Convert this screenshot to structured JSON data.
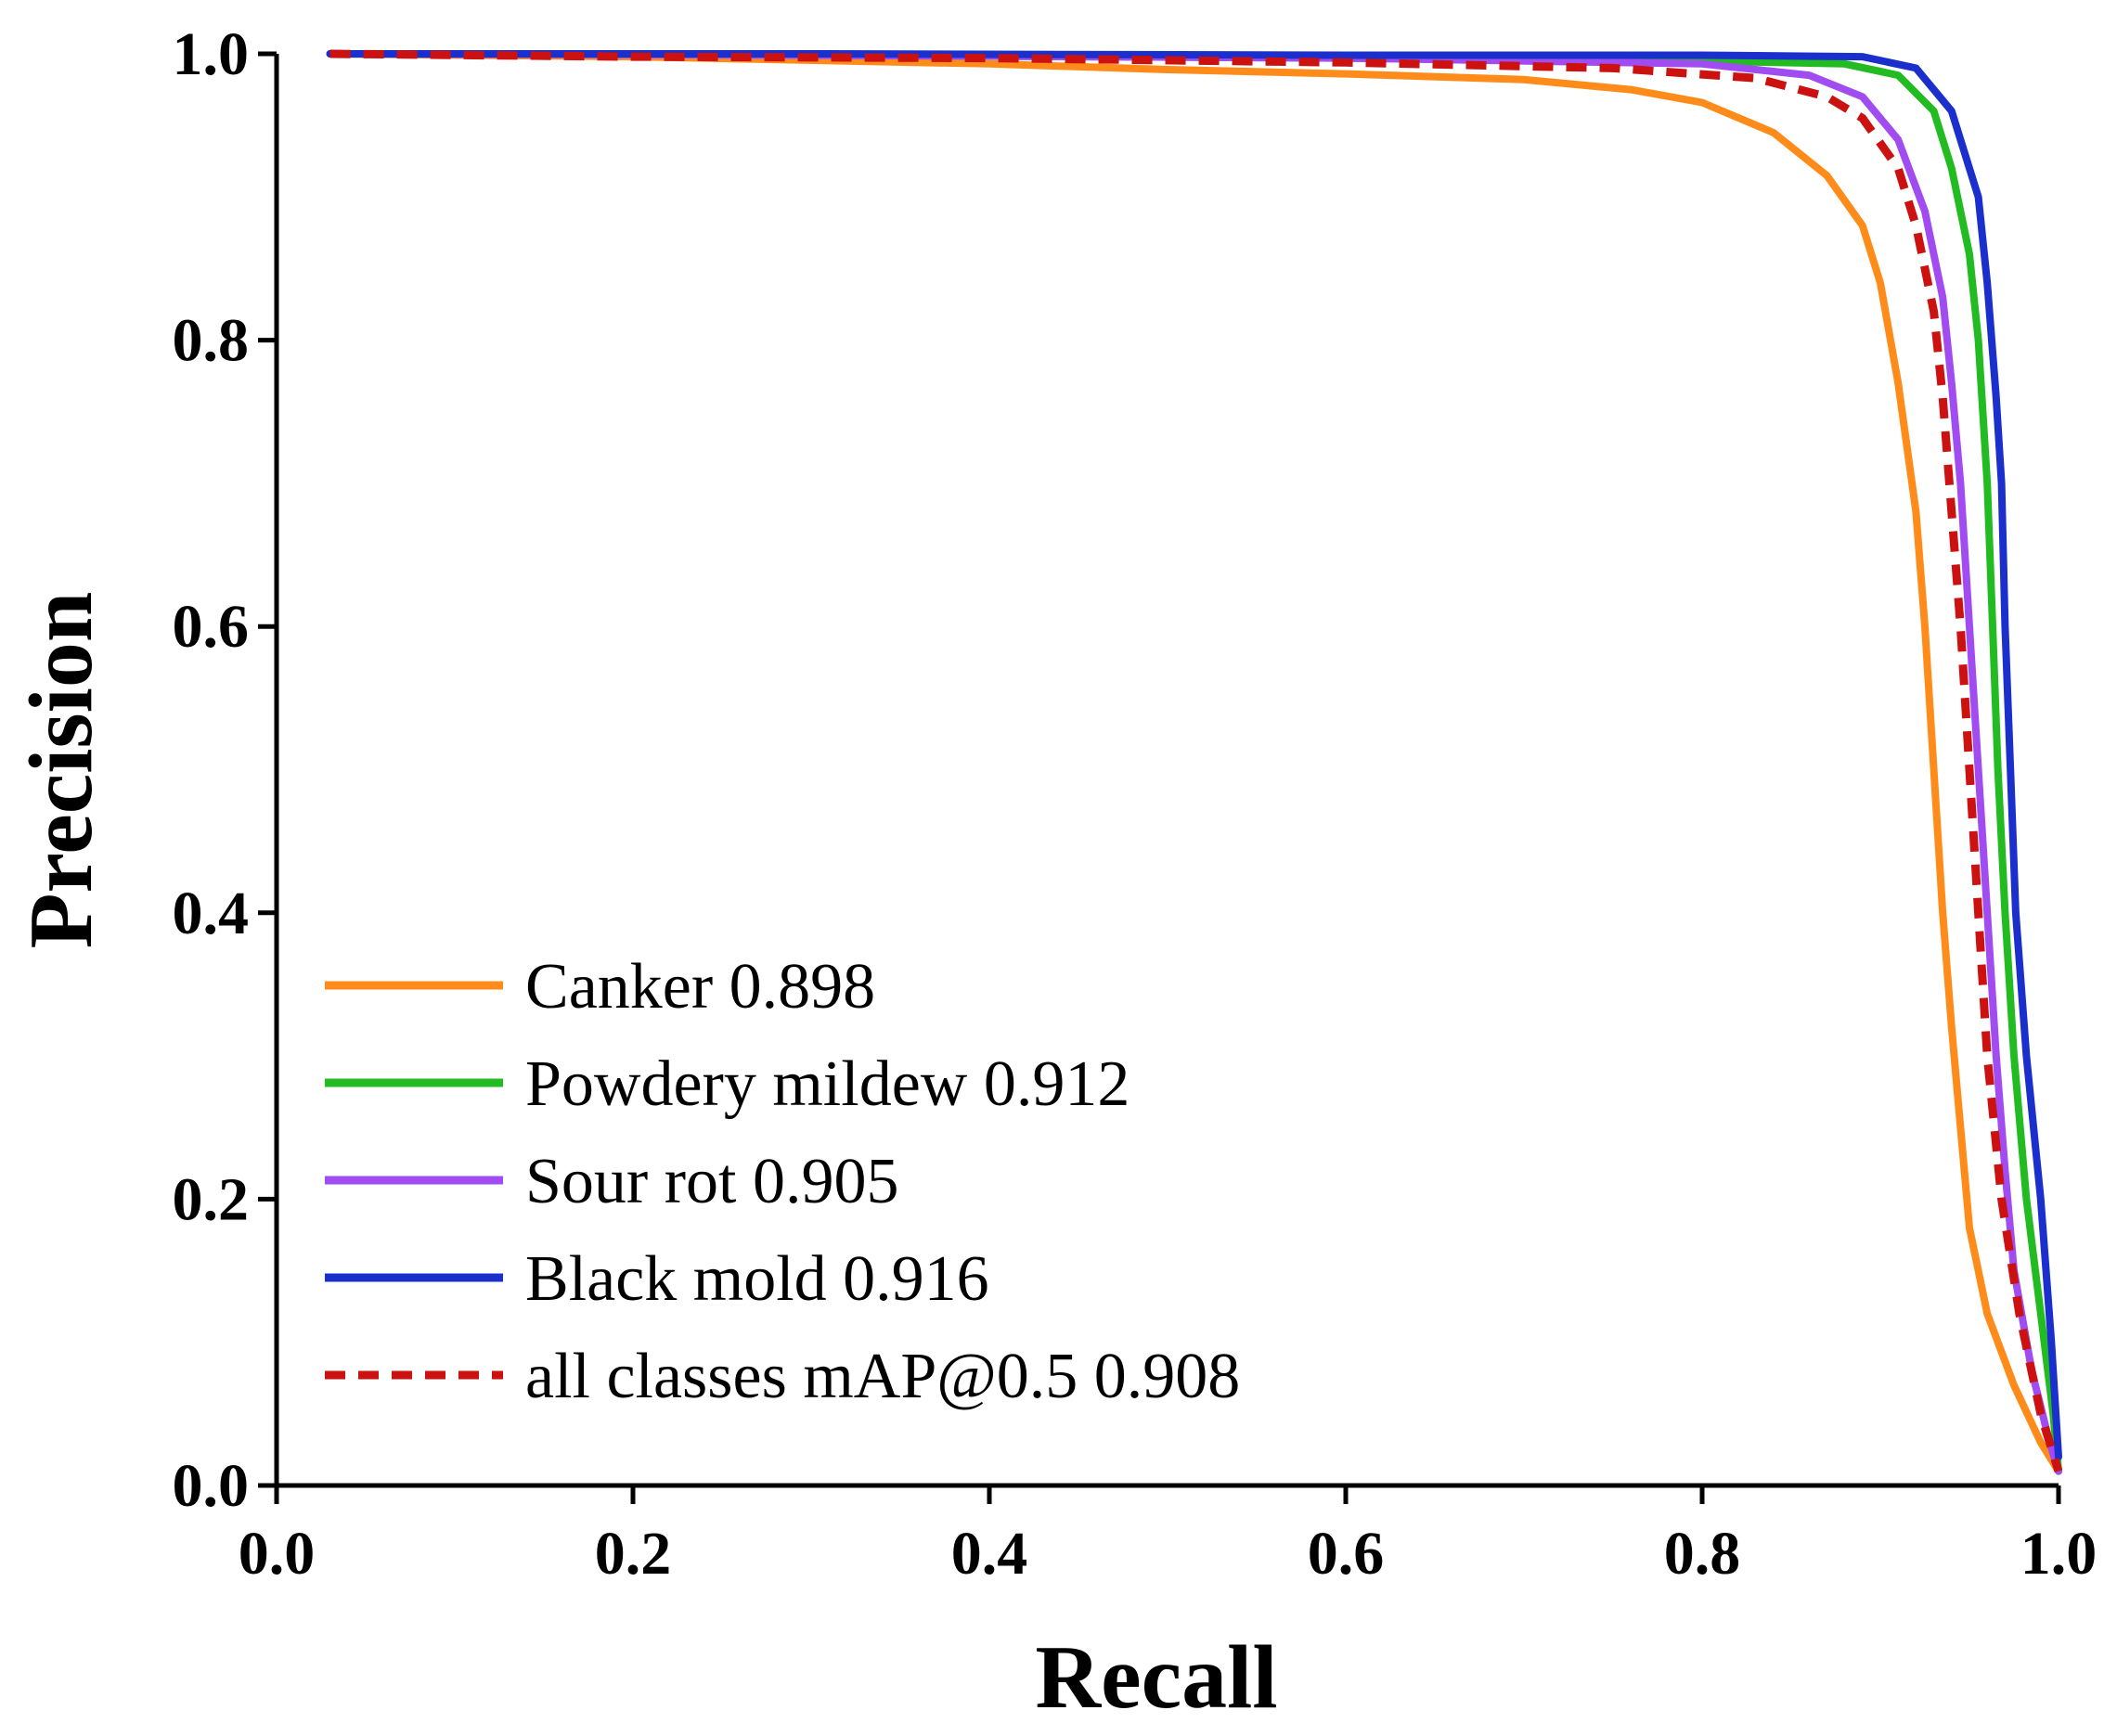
{
  "chart_data": {
    "type": "line",
    "title": "",
    "xlabel": "Recall",
    "ylabel": "Precision",
    "xlim": [
      0.0,
      1.0
    ],
    "ylim": [
      0.0,
      1.0
    ],
    "xticks": [
      "0.0",
      "0.2",
      "0.4",
      "0.6",
      "0.8",
      "1.0"
    ],
    "yticks": [
      "0.0",
      "0.2",
      "0.4",
      "0.6",
      "0.8",
      "1.0"
    ],
    "grid": false,
    "legend_position": "bottom-left",
    "series": [
      {
        "name": "Canker",
        "label": "Canker  0.898",
        "ap": 0.898,
        "color": "#ff8c1a",
        "style": "solid",
        "points": [
          [
            0.03,
            1.0
          ],
          [
            0.2,
            0.998
          ],
          [
            0.4,
            0.993
          ],
          [
            0.5,
            0.989
          ],
          [
            0.6,
            0.986
          ],
          [
            0.7,
            0.982
          ],
          [
            0.76,
            0.975
          ],
          [
            0.8,
            0.966
          ],
          [
            0.84,
            0.945
          ],
          [
            0.87,
            0.915
          ],
          [
            0.89,
            0.88
          ],
          [
            0.9,
            0.84
          ],
          [
            0.91,
            0.77
          ],
          [
            0.92,
            0.68
          ],
          [
            0.925,
            0.6
          ],
          [
            0.93,
            0.5
          ],
          [
            0.935,
            0.4
          ],
          [
            0.94,
            0.32
          ],
          [
            0.945,
            0.25
          ],
          [
            0.95,
            0.18
          ],
          [
            0.96,
            0.12
          ],
          [
            0.975,
            0.07
          ],
          [
            0.99,
            0.03
          ],
          [
            1.0,
            0.01
          ]
        ]
      },
      {
        "name": "Powdery mildew",
        "label": "Powdery mildew 0.912",
        "ap": 0.912,
        "color": "#22bb22",
        "style": "solid",
        "points": [
          [
            0.03,
            1.0
          ],
          [
            0.3,
            0.999
          ],
          [
            0.6,
            0.997
          ],
          [
            0.8,
            0.995
          ],
          [
            0.88,
            0.993
          ],
          [
            0.91,
            0.985
          ],
          [
            0.93,
            0.96
          ],
          [
            0.94,
            0.92
          ],
          [
            0.95,
            0.86
          ],
          [
            0.955,
            0.8
          ],
          [
            0.96,
            0.7
          ],
          [
            0.963,
            0.6
          ],
          [
            0.966,
            0.5
          ],
          [
            0.97,
            0.4
          ],
          [
            0.975,
            0.3
          ],
          [
            0.982,
            0.2
          ],
          [
            0.99,
            0.12
          ],
          [
            0.997,
            0.05
          ],
          [
            1.0,
            0.01
          ]
        ]
      },
      {
        "name": "Sour rot",
        "label": "Sour rot 0.905",
        "ap": 0.905,
        "color": "#a04cf0",
        "style": "solid",
        "points": [
          [
            0.03,
            1.0
          ],
          [
            0.3,
            0.999
          ],
          [
            0.6,
            0.997
          ],
          [
            0.8,
            0.993
          ],
          [
            0.86,
            0.985
          ],
          [
            0.89,
            0.97
          ],
          [
            0.91,
            0.94
          ],
          [
            0.925,
            0.89
          ],
          [
            0.935,
            0.83
          ],
          [
            0.94,
            0.77
          ],
          [
            0.945,
            0.7
          ],
          [
            0.95,
            0.6
          ],
          [
            0.955,
            0.5
          ],
          [
            0.96,
            0.4
          ],
          [
            0.965,
            0.3
          ],
          [
            0.97,
            0.22
          ],
          [
            0.975,
            0.15
          ],
          [
            0.985,
            0.08
          ],
          [
            0.995,
            0.03
          ],
          [
            1.0,
            0.01
          ]
        ]
      },
      {
        "name": "Black mold",
        "label": "Black mold 0.916",
        "ap": 0.916,
        "color": "#1a2fcc",
        "style": "solid",
        "points": [
          [
            0.03,
            1.0
          ],
          [
            0.3,
            1.0
          ],
          [
            0.6,
            0.999
          ],
          [
            0.8,
            0.999
          ],
          [
            0.89,
            0.998
          ],
          [
            0.92,
            0.99
          ],
          [
            0.94,
            0.96
          ],
          [
            0.955,
            0.9
          ],
          [
            0.96,
            0.84
          ],
          [
            0.965,
            0.76
          ],
          [
            0.968,
            0.7
          ],
          [
            0.97,
            0.6
          ],
          [
            0.973,
            0.5
          ],
          [
            0.976,
            0.4
          ],
          [
            0.982,
            0.3
          ],
          [
            0.99,
            0.2
          ],
          [
            0.996,
            0.1
          ],
          [
            1.0,
            0.02
          ]
        ]
      },
      {
        "name": "all classes",
        "label": "all classes mAP@0.5 0.908",
        "ap": 0.908,
        "color": "#cc1111",
        "style": "dashed",
        "points": [
          [
            0.03,
            1.0
          ],
          [
            0.2,
            0.998
          ],
          [
            0.4,
            0.997
          ],
          [
            0.6,
            0.994
          ],
          [
            0.75,
            0.99
          ],
          [
            0.83,
            0.983
          ],
          [
            0.87,
            0.97
          ],
          [
            0.89,
            0.955
          ],
          [
            0.91,
            0.92
          ],
          [
            0.92,
            0.88
          ],
          [
            0.93,
            0.82
          ],
          [
            0.935,
            0.76
          ],
          [
            0.94,
            0.68
          ],
          [
            0.945,
            0.6
          ],
          [
            0.95,
            0.5
          ],
          [
            0.955,
            0.4
          ],
          [
            0.96,
            0.3
          ],
          [
            0.968,
            0.2
          ],
          [
            0.978,
            0.12
          ],
          [
            0.99,
            0.05
          ],
          [
            1.0,
            0.01
          ]
        ]
      }
    ]
  }
}
